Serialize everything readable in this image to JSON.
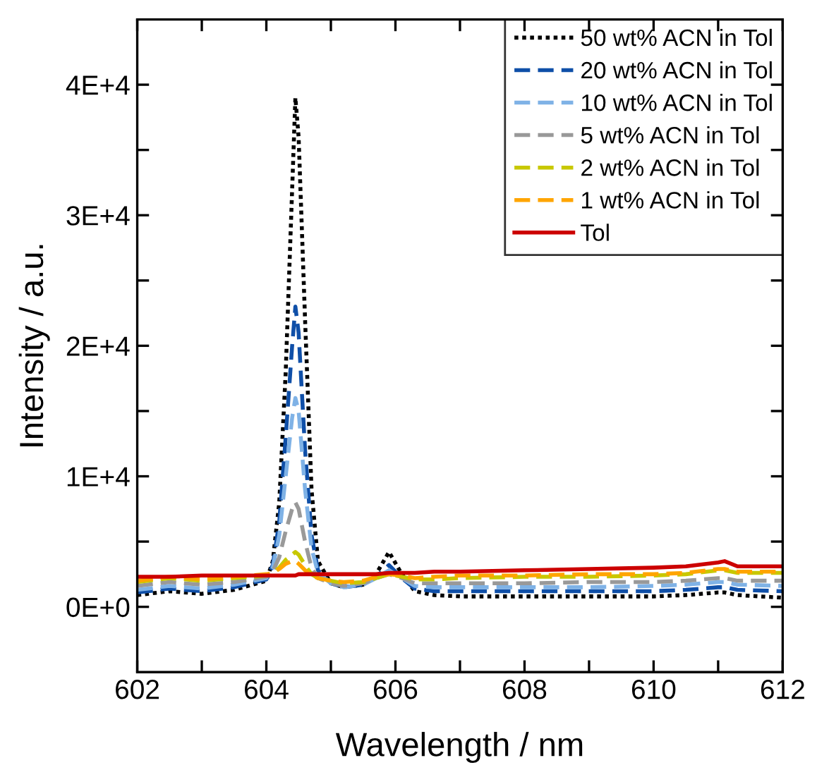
{
  "chart_data": {
    "type": "line",
    "xlabel": "Wavelength / nm",
    "ylabel": "Intensity / a.u.",
    "x": [
      602,
      602.5,
      603,
      603.5,
      604,
      604.1,
      604.2,
      604.3,
      604.4,
      604.45,
      604.5,
      604.6,
      604.7,
      604.8,
      605,
      605.2,
      605.5,
      605.7,
      605.9,
      606.1,
      606.3,
      606.6,
      607,
      608,
      609,
      610,
      610.5,
      611,
      611.1,
      611.3,
      612
    ],
    "series": [
      {
        "name": "50 wt% ACN in Tol",
        "color": "#000000",
        "line_style": "dotted",
        "values": [
          900,
          1200,
          1000,
          1300,
          2000,
          3500,
          8000,
          18000,
          32000,
          39000,
          36000,
          22000,
          9000,
          3500,
          1800,
          1500,
          1700,
          2500,
          4200,
          2500,
          1200,
          900,
          800,
          800,
          800,
          800,
          900,
          1100,
          1100,
          900,
          700
        ]
      },
      {
        "name": "20 wt% ACN in Tol",
        "color": "#0f4fa8",
        "line_style": "dashed",
        "values": [
          1100,
          1400,
          1200,
          1500,
          2100,
          3200,
          6500,
          13000,
          20000,
          23000,
          21000,
          12000,
          5500,
          2800,
          1800,
          1500,
          1700,
          2300,
          3200,
          2200,
          1400,
          1200,
          1200,
          1200,
          1200,
          1200,
          1300,
          1500,
          1500,
          1300,
          1200
        ]
      },
      {
        "name": "10 wt% ACN in Tol",
        "color": "#7fb2e6",
        "line_style": "dashed",
        "values": [
          1300,
          1600,
          1400,
          1700,
          2200,
          3000,
          5500,
          10000,
          14500,
          16000,
          15000,
          9000,
          4500,
          2600,
          1800,
          1500,
          1700,
          2200,
          2800,
          2200,
          1600,
          1500,
          1500,
          1500,
          1500,
          1600,
          1700,
          1900,
          1900,
          1700,
          1600
        ]
      },
      {
        "name": "5 wt% ACN in Tol",
        "color": "#999999",
        "line_style": "dashed",
        "values": [
          1600,
          1900,
          1700,
          1900,
          2300,
          2700,
          3800,
          5800,
          7500,
          8000,
          7500,
          5000,
          3000,
          2200,
          1800,
          1600,
          1800,
          2200,
          2500,
          2200,
          1800,
          1800,
          1800,
          1800,
          1900,
          1900,
          2000,
          2200,
          2200,
          2000,
          2000
        ]
      },
      {
        "name": "2 wt% ACN in Tol",
        "color": "#c8c800",
        "line_style": "dashed",
        "values": [
          1900,
          2200,
          2000,
          2200,
          2400,
          2600,
          3000,
          3600,
          4000,
          4200,
          4000,
          3200,
          2500,
          2200,
          2000,
          1800,
          1900,
          2200,
          2500,
          2300,
          2100,
          2100,
          2200,
          2300,
          2300,
          2400,
          2500,
          2800,
          2800,
          2600,
          2600
        ]
      },
      {
        "name": "1 wt% ACN in Tol",
        "color": "#ffa500",
        "line_style": "dashed",
        "values": [
          2000,
          2300,
          2100,
          2300,
          2500,
          2600,
          2900,
          3300,
          3500,
          3500,
          3300,
          2800,
          2400,
          2200,
          2000,
          1900,
          2000,
          2300,
          2500,
          2400,
          2200,
          2300,
          2400,
          2400,
          2500,
          2500,
          2600,
          2900,
          2900,
          2700,
          2700
        ]
      },
      {
        "name": "Tol",
        "color": "#cc0000",
        "line_style": "solid",
        "values": [
          2300,
          2300,
          2400,
          2400,
          2400,
          2400,
          2400,
          2400,
          2400,
          2400,
          2500,
          2500,
          2500,
          2500,
          2500,
          2500,
          2500,
          2500,
          2600,
          2600,
          2600,
          2700,
          2700,
          2800,
          2900,
          3000,
          3100,
          3400,
          3500,
          3100,
          3100
        ]
      }
    ],
    "xlim": [
      602,
      612
    ],
    "xticks": [
      602,
      {
        "value": 603,
        "label": null
      },
      604,
      {
        "value": 605,
        "label": null
      },
      606,
      {
        "value": 607,
        "label": null
      },
      608,
      {
        "value": 609,
        "label": null
      },
      610,
      {
        "value": 611,
        "label": null
      },
      612
    ],
    "ylim": [
      -5000,
      45000
    ],
    "yticks": [
      {
        "value": 0,
        "label": "0E+0"
      },
      {
        "value": 5000,
        "label": null
      },
      {
        "value": 10000,
        "label": "1E+4"
      },
      {
        "value": 15000,
        "label": null
      },
      {
        "value": 20000,
        "label": "2E+4"
      },
      {
        "value": 25000,
        "label": null
      },
      {
        "value": 30000,
        "label": "3E+4"
      },
      {
        "value": 35000,
        "label": null
      },
      {
        "value": 40000,
        "label": "4E+4"
      }
    ],
    "grid": false,
    "legend": "top right",
    "marker": "none"
  }
}
